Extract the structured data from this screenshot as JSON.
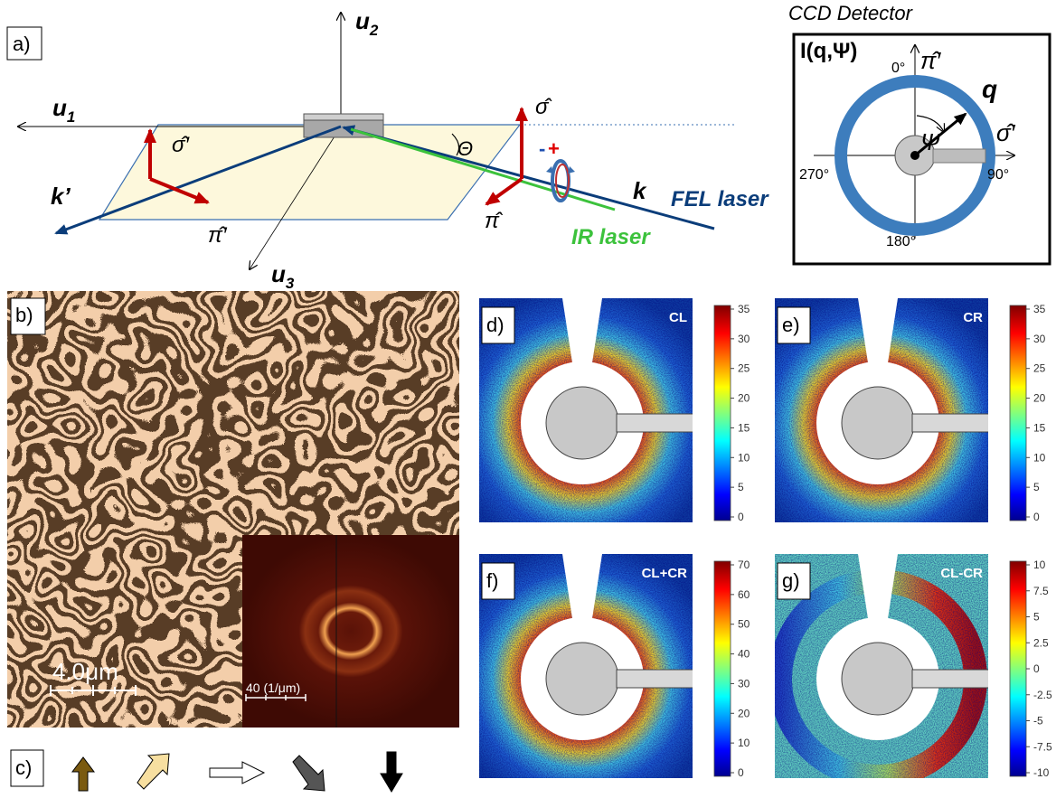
{
  "panel_labels": [
    "a)",
    "b)",
    "c)",
    "d)",
    "e)",
    "f)",
    "g)"
  ],
  "geometry": {
    "axes": [
      {
        "base": "u",
        "sub": "2"
      },
      {
        "base": "u",
        "sub": "1"
      },
      {
        "base": "u",
        "sub": "3"
      }
    ],
    "k_in": "k",
    "k_out": "k’",
    "sigma": "σ̂",
    "sigma_prime": "σ̂′",
    "pi": "π̂",
    "pi_prime": "π̂′",
    "theta": "Θ",
    "helicity": [
      "-",
      "+"
    ],
    "fel": "FEL laser",
    "ir": "IR laser"
  },
  "ccd": {
    "title": "CCD Detector",
    "intensity": "I(q,Ψ)",
    "angles": [
      "0°",
      "90°",
      "180°",
      "270°"
    ],
    "pi_prime": "π̂′",
    "sigma_prime": "σ̂′",
    "q": "q",
    "psi": "Ψ"
  },
  "microscopy": {
    "scale_bar": "4.0μm",
    "inset_scale_bar": "40 (1/μm)"
  },
  "scattering": [
    {
      "label": "CL",
      "colorbar_ticks": [
        "35",
        "30",
        "25",
        "20",
        "15",
        "10",
        "5",
        "0"
      ]
    },
    {
      "label": "CR",
      "colorbar_ticks": [
        "35",
        "30",
        "25",
        "20",
        "15",
        "10",
        "5",
        "0"
      ]
    },
    {
      "label": "CL+CR",
      "colorbar_ticks": [
        "70",
        "60",
        "50",
        "40",
        "30",
        "20",
        "10",
        "0"
      ]
    },
    {
      "label": "CL-CR",
      "colorbar_ticks": [
        "10",
        "7.5",
        "5",
        "2.5",
        "0",
        "-2.5",
        "-5",
        "-7.5",
        "-10"
      ]
    }
  ]
}
